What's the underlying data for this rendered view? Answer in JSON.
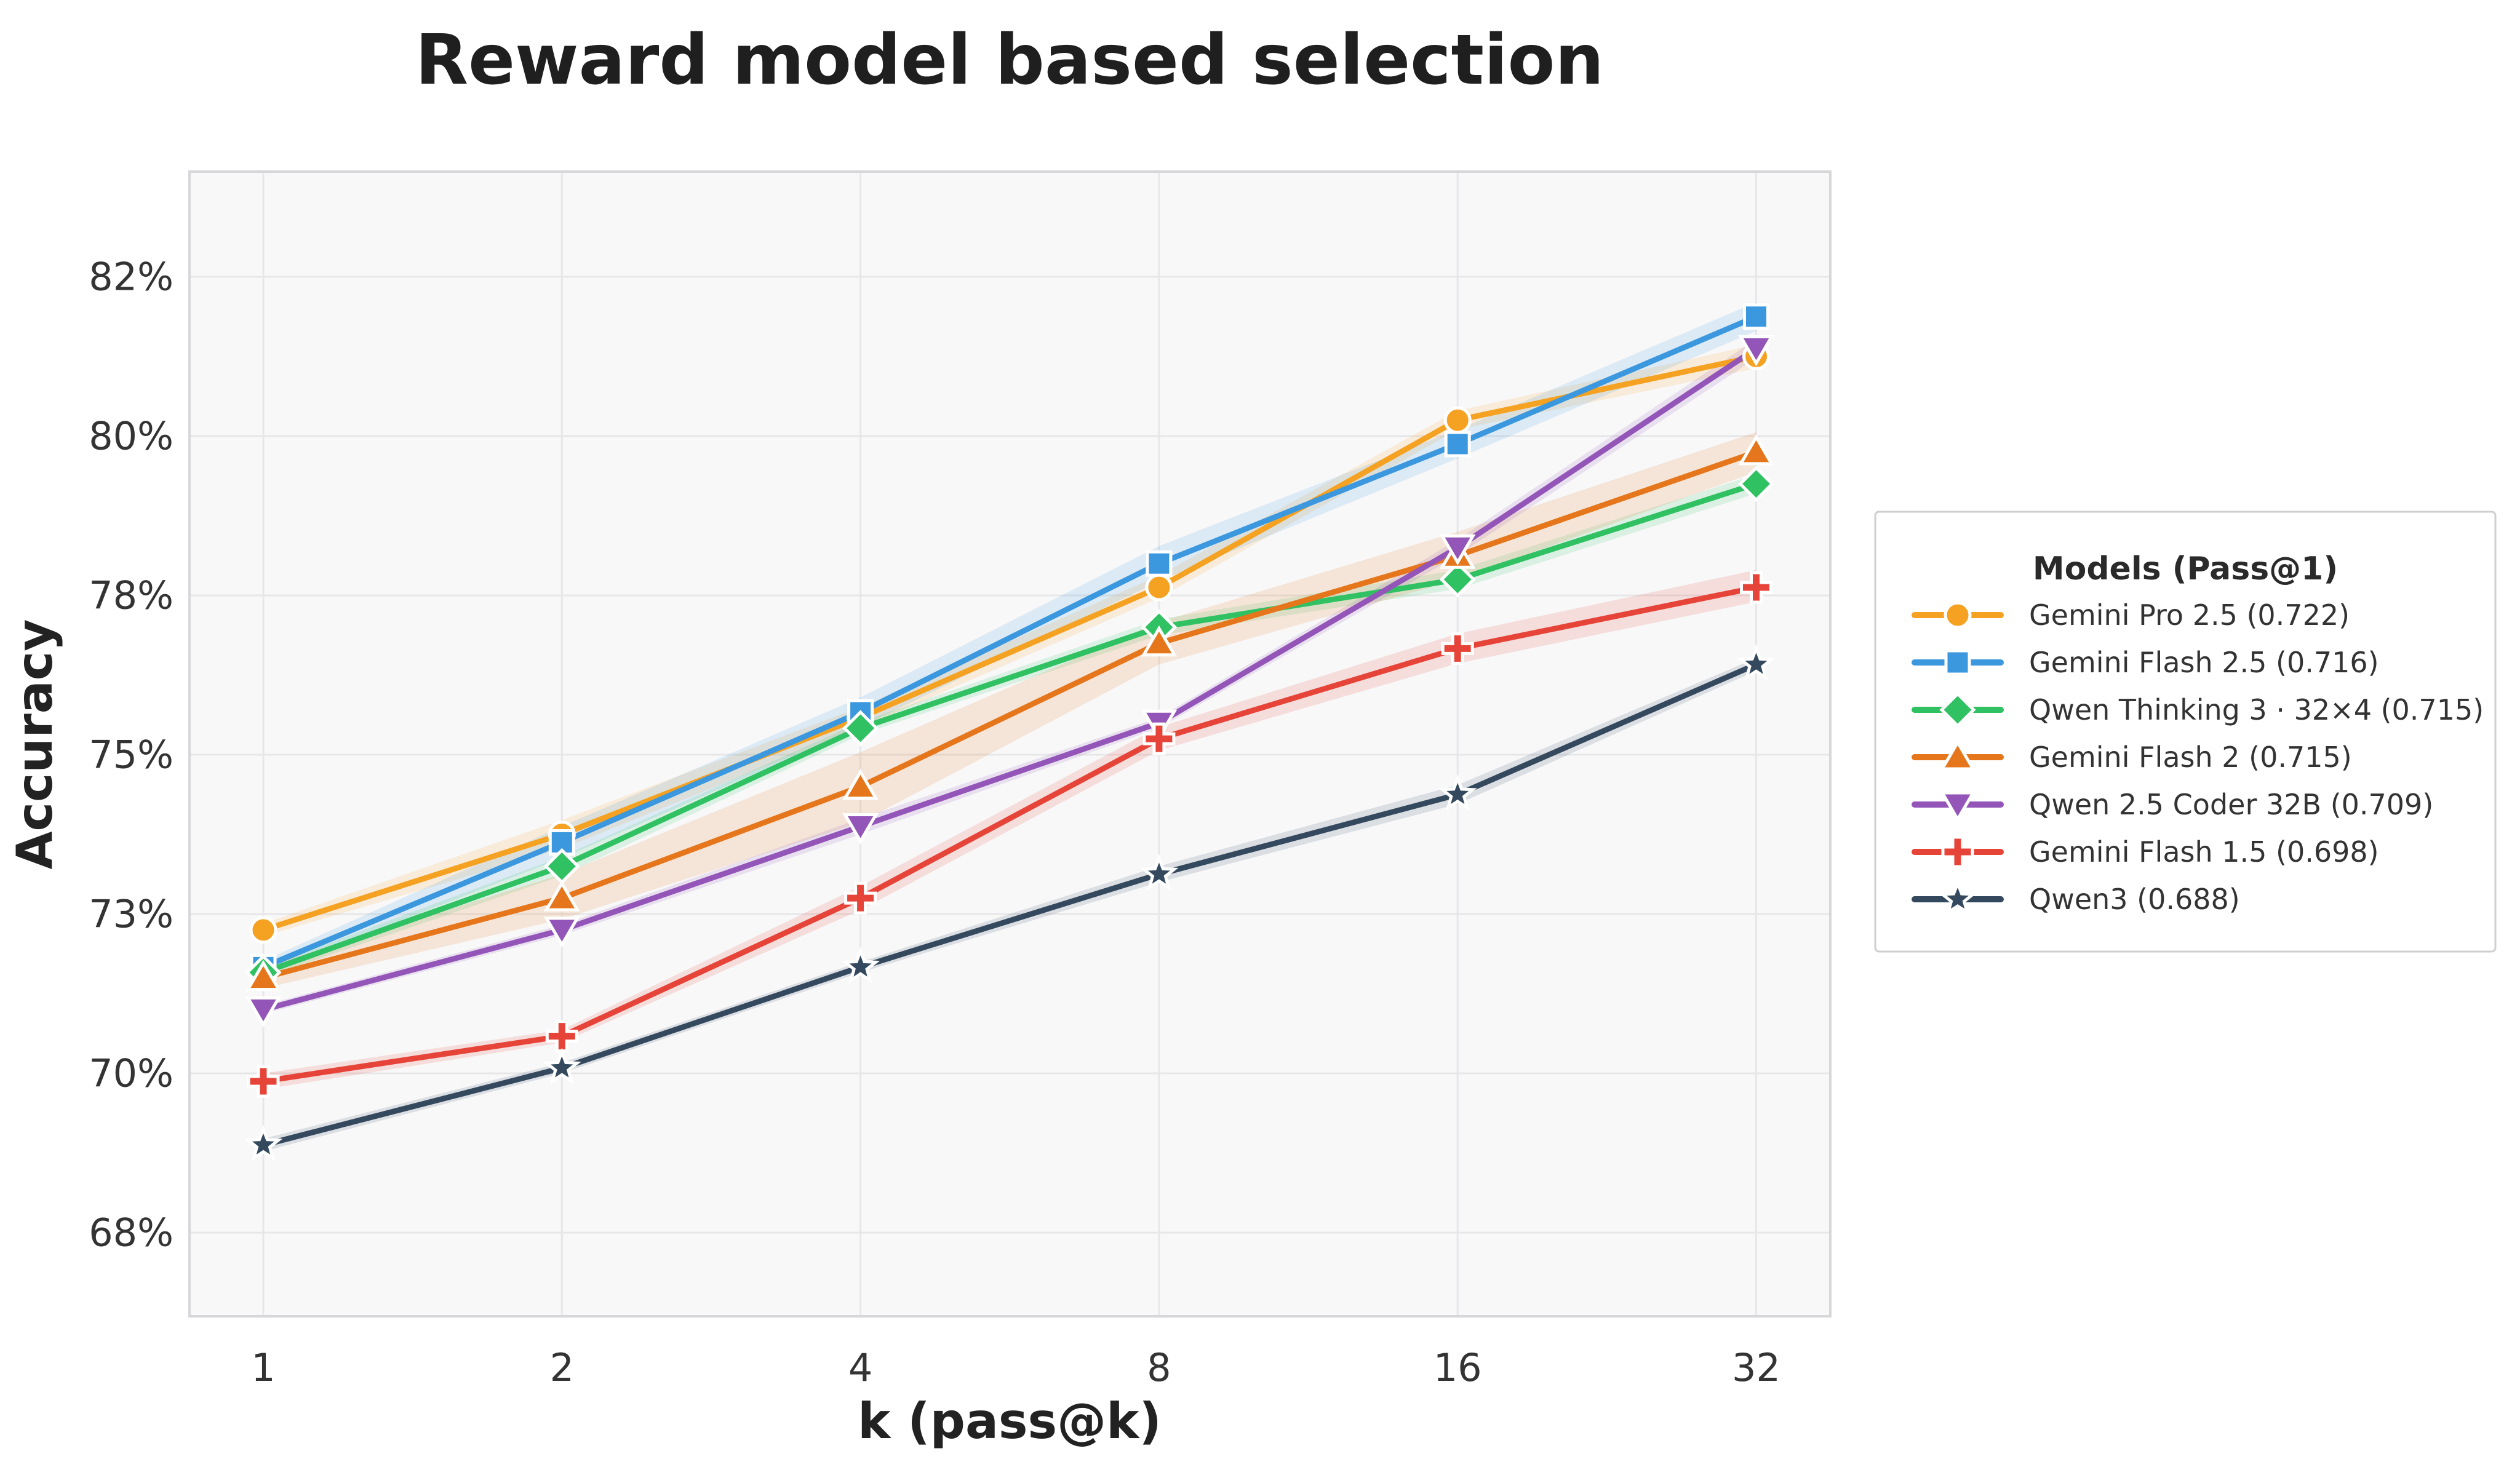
{
  "title": "Reward model based selection",
  "axes": {
    "x_label": "k (pass@k)",
    "y_label": "Accuracy",
    "x_tick_labels": [
      "1",
      "2",
      "4",
      "8",
      "16",
      "32"
    ],
    "y_tick_labels": [
      "68%",
      "70%",
      "73%",
      "75%",
      "78%",
      "80%",
      "82%"
    ]
  },
  "legend": {
    "title": "Models (Pass@1)"
  },
  "colors": {
    "plot_background": "#f8f8f9",
    "gridline": "#e7e7e9",
    "plot_border": "#d7d7da",
    "legend_border": "#cfcfcf",
    "text_dark": "#1f1f1f"
  },
  "chart_data": {
    "type": "line",
    "title": "Reward model based selection",
    "xlabel": "k (pass@k)",
    "ylabel": "Accuracy",
    "x_scale": "log2",
    "x": [
      1,
      2,
      4,
      8,
      16,
      32
    ],
    "x_tick_labels": [
      "1",
      "2",
      "4",
      "8",
      "16",
      "32"
    ],
    "y_tick_values": [
      68,
      70,
      73,
      75,
      78,
      80,
      82
    ],
    "y_tick_labels": [
      "68%",
      "70%",
      "73%",
      "75%",
      "78%",
      "80%",
      "82%"
    ],
    "y_axis_note": "tick marks are evenly spaced on the axis despite uneven value steps",
    "ylim": [
      67.0,
      83.3
    ],
    "grid": true,
    "legend_position": "outside-right",
    "legend_title": "Models (Pass@1)",
    "series": [
      {
        "name": "Gemini Pro 2.5 (0.722)",
        "pass_at_1": 0.722,
        "color": "#F5A122",
        "marker": "circle",
        "values": [
          72.7,
          74.0,
          75.7,
          78.1,
          80.2,
          81.0
        ],
        "band": [
          0.12,
          0.18,
          0.2,
          0.15,
          0.12,
          0.15
        ]
      },
      {
        "name": "Gemini Flash 2.5 (0.716)",
        "pass_at_1": 0.716,
        "color": "#3B97DE",
        "marker": "square",
        "values": [
          72.0,
          73.9,
          75.8,
          78.4,
          79.9,
          81.5
        ],
        "band": [
          0.12,
          0.2,
          0.28,
          0.22,
          0.18,
          0.18
        ]
      },
      {
        "name": "Qwen Thinking 3 · 32×4 (0.715)",
        "pass_at_1": 0.715,
        "color": "#2FC162",
        "marker": "diamond",
        "values": [
          71.9,
          73.6,
          75.5,
          77.4,
          78.2,
          79.4
        ],
        "band": [
          0.1,
          0.12,
          0.12,
          0.15,
          0.12,
          0.12
        ]
      },
      {
        "name": "Gemini Flash 2 (0.715)",
        "pass_at_1": 0.715,
        "color": "#E6761B",
        "marker": "triangle-up",
        "values": [
          71.8,
          73.2,
          74.6,
          77.1,
          78.5,
          79.8
        ],
        "band": [
          0.2,
          0.3,
          0.45,
          0.4,
          0.3,
          0.25
        ]
      },
      {
        "name": "Qwen 2.5 Coder 32B (0.709)",
        "pass_at_1": 0.709,
        "color": "#9455B8",
        "marker": "triangle-down",
        "values": [
          71.2,
          72.7,
          74.1,
          75.6,
          78.6,
          81.1
        ],
        "band": [
          0.08,
          0.1,
          0.1,
          0.1,
          0.1,
          0.12
        ]
      },
      {
        "name": "Gemini Flash 1.5 (0.698)",
        "pass_at_1": 0.698,
        "color": "#E64438",
        "marker": "plus",
        "values": [
          69.9,
          70.7,
          73.2,
          75.3,
          77.0,
          78.1
        ],
        "band": [
          0.1,
          0.12,
          0.15,
          0.22,
          0.28,
          0.22
        ]
      },
      {
        "name": "Qwen3 (0.688)",
        "pass_at_1": 0.688,
        "color": "#34495E",
        "marker": "star",
        "values": [
          69.1,
          70.1,
          72.0,
          73.5,
          74.5,
          76.7
        ],
        "band": [
          0.08,
          0.1,
          0.1,
          0.1,
          0.12,
          0.12
        ]
      }
    ]
  }
}
